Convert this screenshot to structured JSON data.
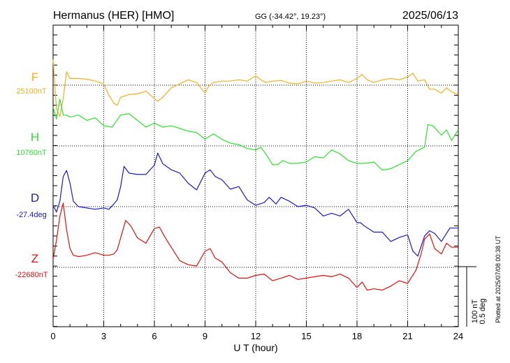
{
  "header": {
    "station": "Hermanus (HER)  [HMO]",
    "coords": "GG (-34.42°,  19.23°)",
    "date": "2025/06/13"
  },
  "footer_note": "Plotted at 2025/07/08 00:38 UT",
  "scale_bar": {
    "line1": "100 nT",
    "line2": "0.5 deg"
  },
  "chart_data": {
    "type": "line",
    "xlabel": "U T (hour)",
    "xlim": [
      0,
      24
    ],
    "xticks": [
      "0",
      "3",
      "6",
      "9",
      "12",
      "15",
      "18",
      "21",
      "24"
    ],
    "grid": true,
    "series": [
      {
        "name": "F",
        "baseline_label": "25100nT",
        "color": "#f0b020",
        "x": [
          0,
          0.2,
          0.4,
          0.6,
          0.8,
          1,
          1.5,
          2,
          2.5,
          3,
          3.3,
          3.6,
          3.8,
          4,
          4.5,
          5,
          5.5,
          6,
          6.2,
          6.5,
          7,
          7.5,
          8,
          8.5,
          9,
          9.2,
          9.5,
          10,
          10.5,
          11,
          11.5,
          12,
          12.3,
          12.6,
          13,
          13.5,
          14,
          14.5,
          15,
          15.5,
          16,
          16.5,
          17,
          17.5,
          18,
          18.3,
          18.6,
          19,
          19.5,
          20,
          20.5,
          21,
          21.3,
          21.6,
          22,
          22.3,
          22.6,
          23,
          23.3,
          23.6,
          24
        ],
        "values": [
          38,
          -35,
          -47,
          -20,
          20,
          10,
          10,
          9,
          6,
          2,
          -15,
          -27,
          -30,
          -18,
          -14,
          -13,
          -9,
          -20,
          -24,
          -18,
          -4,
          2,
          8,
          4,
          -12,
          -2,
          4,
          6,
          6,
          8,
          6,
          14,
          8,
          4,
          6,
          7,
          3,
          2,
          6,
          3,
          4,
          6,
          8,
          4,
          10,
          16,
          8,
          4,
          8,
          10,
          8,
          12,
          18,
          6,
          8,
          -6,
          -6,
          -12,
          -4,
          -10,
          -14
        ]
      },
      {
        "name": "H",
        "baseline_label": "10760nT",
        "color": "#30e030",
        "x": [
          0,
          0.2,
          0.4,
          0.6,
          0.8,
          1,
          1.5,
          2,
          2.5,
          3,
          3.5,
          4,
          4.5,
          5,
          5.5,
          6,
          6.5,
          7,
          7.5,
          8,
          8.5,
          9,
          9.5,
          10,
          10.5,
          11,
          11.5,
          12,
          12.3,
          12.6,
          13,
          13.3,
          13.6,
          14,
          14.5,
          15,
          15.5,
          16,
          16.5,
          17,
          17.5,
          18,
          18.5,
          19,
          19.5,
          20,
          20.5,
          21,
          21.5,
          22,
          22.2,
          22.5,
          23,
          23.3,
          23.6,
          24
        ],
        "values": [
          58,
          40,
          70,
          46,
          46,
          43,
          46,
          38,
          42,
          30,
          28,
          46,
          48,
          38,
          28,
          34,
          28,
          30,
          26,
          22,
          20,
          10,
          18,
          10,
          4,
          2,
          -4,
          -6,
          -2,
          -12,
          -28,
          -28,
          -22,
          -26,
          -26,
          -24,
          -16,
          -18,
          -6,
          -12,
          -22,
          -26,
          -26,
          -24,
          -36,
          -34,
          -28,
          -22,
          -8,
          -2,
          32,
          30,
          16,
          24,
          8,
          24
        ]
      },
      {
        "name": "D",
        "baseline_label": "-27.4deg",
        "color": "#1a1acc",
        "x": [
          0,
          0.2,
          0.4,
          0.6,
          0.8,
          1,
          1.2,
          1.5,
          2,
          2.5,
          3,
          3.3,
          3.6,
          3.8,
          4,
          4.2,
          4.5,
          5,
          5.5,
          6,
          6.2,
          6.5,
          7,
          7.5,
          8,
          8.5,
          9,
          9.3,
          9.6,
          10,
          10.5,
          11,
          11.5,
          12,
          12.5,
          12.8,
          13.2,
          13.5,
          14,
          14.5,
          15,
          15.5,
          16,
          16.5,
          17,
          17.5,
          18,
          18.2,
          18.5,
          19,
          19.5,
          20,
          20.5,
          21,
          21.3,
          21.6,
          22,
          22.3,
          22.6,
          23,
          23.5,
          24
        ],
        "values": [
          2,
          -8,
          8,
          45,
          54,
          35,
          8,
          0,
          -2,
          -4,
          -2,
          -4,
          4,
          10,
          30,
          60,
          50,
          48,
          48,
          62,
          80,
          64,
          55,
          50,
          35,
          25,
          50,
          55,
          45,
          40,
          26,
          30,
          10,
          2,
          6,
          14,
          4,
          14,
          8,
          0,
          2,
          -2,
          -14,
          -10,
          -14,
          -4,
          -24,
          -24,
          -30,
          -38,
          -38,
          -52,
          -46,
          -42,
          -66,
          -74,
          -44,
          -36,
          -40,
          -52,
          -32,
          -32
        ]
      },
      {
        "name": "Z",
        "baseline_label": "-22680nT",
        "color": "#e01010",
        "x": [
          0,
          0.2,
          0.4,
          0.6,
          0.8,
          1,
          1.2,
          1.5,
          2,
          2.5,
          3,
          3.3,
          3.6,
          3.8,
          4,
          4.3,
          4.6,
          5,
          5.5,
          6,
          6.3,
          6.6,
          7,
          7.5,
          8,
          8.5,
          9,
          9.3,
          9.6,
          10,
          10.5,
          11,
          11.5,
          12,
          12.5,
          13,
          13.5,
          14,
          14.5,
          15,
          15.5,
          16,
          16.5,
          17,
          17.5,
          18,
          18.3,
          18.6,
          19,
          19.5,
          20,
          20.5,
          21,
          21.5,
          21.8,
          22,
          22.3,
          22.6,
          23,
          23.3,
          23.6,
          24
        ],
        "values": [
          12,
          40,
          76,
          96,
          56,
          28,
          18,
          16,
          18,
          22,
          18,
          18,
          20,
          26,
          44,
          70,
          62,
          44,
          36,
          58,
          60,
          46,
          30,
          10,
          4,
          2,
          24,
          28,
          14,
          8,
          -8,
          -16,
          -16,
          -12,
          -10,
          -20,
          -16,
          -12,
          -18,
          -16,
          -14,
          -12,
          -14,
          -10,
          -16,
          -30,
          -22,
          -34,
          -32,
          -34,
          -28,
          -20,
          -24,
          -4,
          20,
          42,
          50,
          28,
          20,
          36,
          30,
          30
        ]
      }
    ]
  }
}
